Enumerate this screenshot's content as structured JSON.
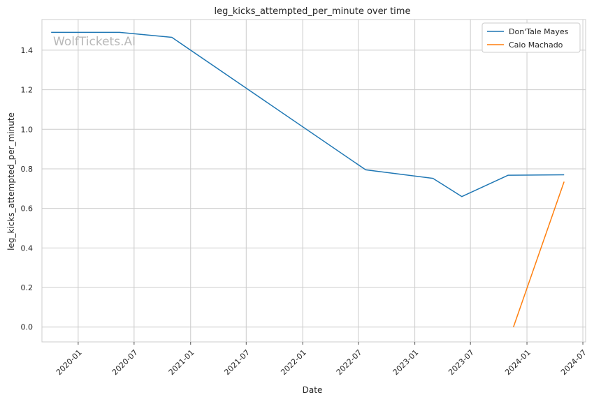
{
  "watermark": "WolfTickets.AI",
  "chart_data": {
    "type": "line",
    "title": "leg_kicks_attempted_per_minute over time",
    "xlabel": "Date",
    "ylabel": "leg_kicks_attempted_per_minute",
    "x_ticks": [
      "2020-01",
      "2020-07",
      "2021-01",
      "2021-07",
      "2022-01",
      "2022-07",
      "2023-01",
      "2023-07",
      "2024-01",
      "2024-07"
    ],
    "y_ticks": [
      "0.0",
      "0.2",
      "0.4",
      "0.6",
      "0.8",
      "1.0",
      "1.2",
      "1.4"
    ],
    "ylim": [
      -0.075,
      1.555
    ],
    "xlim": [
      "2019-09-05",
      "2024-07-10"
    ],
    "grid": true,
    "legend_position": "top-right",
    "series": [
      {
        "name": "Don'Tale Mayes",
        "color": "#1f77b4",
        "points": [
          {
            "x": "2019-10-05",
            "y": 1.49
          },
          {
            "x": "2020-05-15",
            "y": 1.49
          },
          {
            "x": "2020-11-01",
            "y": 1.465
          },
          {
            "x": "2022-07-25",
            "y": 0.795
          },
          {
            "x": "2023-03-01",
            "y": 0.752
          },
          {
            "x": "2023-06-03",
            "y": 0.66
          },
          {
            "x": "2023-11-01",
            "y": 0.768
          },
          {
            "x": "2024-05-01",
            "y": 0.77
          }
        ]
      },
      {
        "name": "Caio Machado",
        "color": "#ff7f0e",
        "points": [
          {
            "x": "2023-11-18",
            "y": 0.0
          },
          {
            "x": "2024-05-01",
            "y": 0.735
          }
        ]
      }
    ]
  }
}
